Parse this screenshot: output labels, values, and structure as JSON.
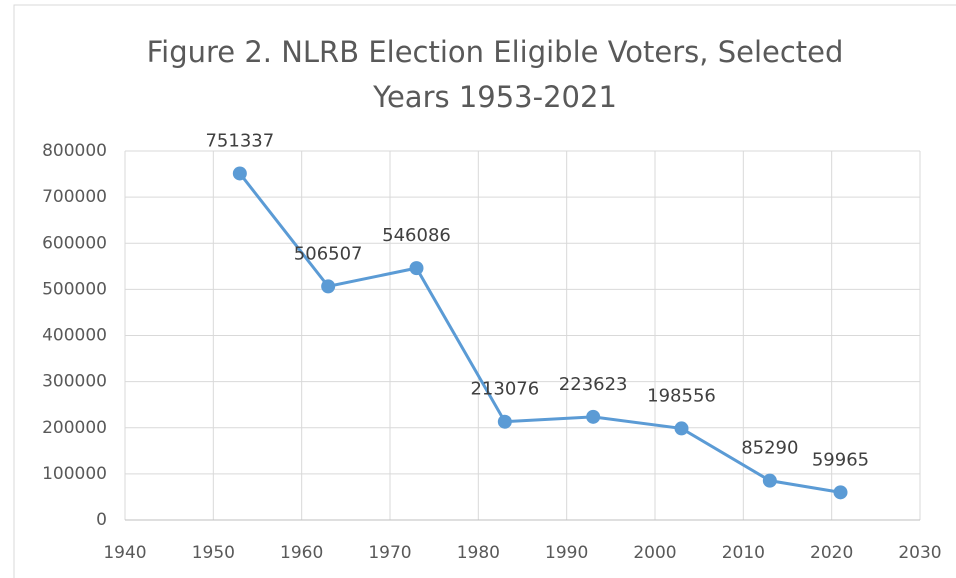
{
  "chart_data": {
    "type": "line",
    "title": "Figure 2. NLRB Election Eligible Voters, Selected Years 1953-2021",
    "x": [
      1953,
      1963,
      1973,
      1983,
      1993,
      2003,
      2013,
      2021
    ],
    "series": [
      {
        "name": "Eligible Voters",
        "color": "#5b9bd5",
        "values": [
          751337,
          506507,
          546086,
          213076,
          223623,
          198556,
          85290,
          59965
        ]
      }
    ],
    "xlim": [
      1940,
      2030
    ],
    "xticks": [
      1940,
      1950,
      1960,
      1970,
      1980,
      1990,
      2000,
      2010,
      2020,
      2030
    ],
    "ylim": [
      0,
      800000
    ],
    "yticks": [
      0,
      100000,
      200000,
      300000,
      400000,
      500000,
      600000,
      700000,
      800000
    ],
    "grid": true,
    "data_labels": true
  }
}
